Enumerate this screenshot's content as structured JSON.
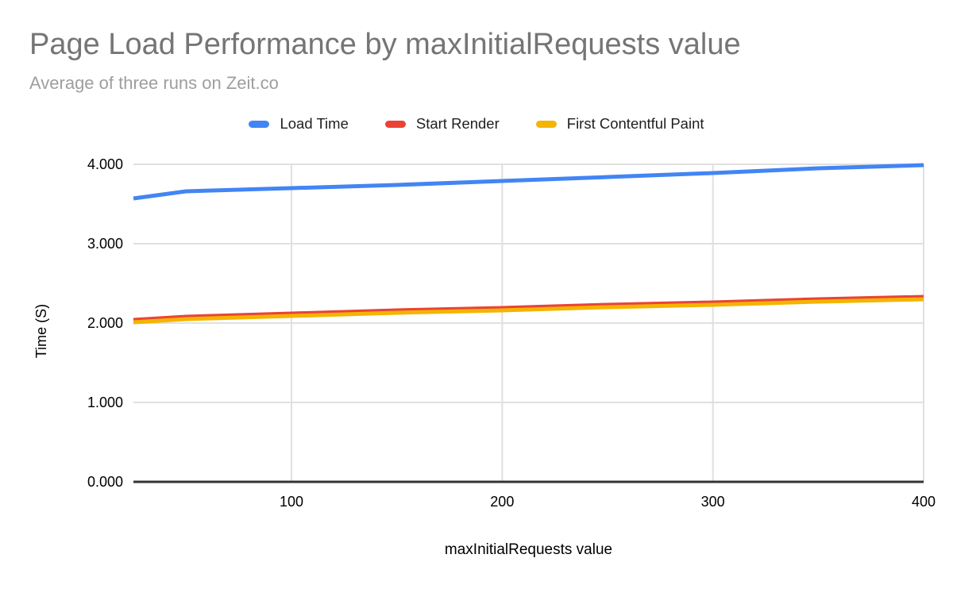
{
  "chart_data": {
    "type": "line",
    "title": "Page Load Performance by maxInitialRequests value",
    "subtitle": "Average of three runs on Zeit.co",
    "xlabel": "maxInitialRequests value",
    "ylabel": "Time (S)",
    "x": [
      25,
      50,
      100,
      150,
      200,
      250,
      300,
      350,
      400
    ],
    "series": [
      {
        "name": "Load Time",
        "color": "#4285F4",
        "values": [
          3.57,
          3.66,
          3.7,
          3.74,
          3.79,
          3.84,
          3.89,
          3.95,
          3.99
        ]
      },
      {
        "name": "Start Render",
        "color": "#EA4335",
        "values": [
          2.04,
          2.08,
          2.12,
          2.16,
          2.19,
          2.23,
          2.26,
          2.3,
          2.33
        ]
      },
      {
        "name": "First Contentful Paint",
        "color": "#F4B400",
        "values": [
          2.01,
          2.05,
          2.09,
          2.13,
          2.16,
          2.2,
          2.23,
          2.27,
          2.3
        ]
      }
    ],
    "xlim": [
      25,
      400
    ],
    "ylim": [
      0,
      4
    ],
    "xticks": [
      {
        "value": 100,
        "label": "100"
      },
      {
        "value": 200,
        "label": "200"
      },
      {
        "value": 300,
        "label": "300"
      },
      {
        "value": 400,
        "label": "400"
      }
    ],
    "yticks": [
      {
        "value": 0,
        "label": "0.000"
      },
      {
        "value": 1,
        "label": "1.000"
      },
      {
        "value": 2,
        "label": "2.000"
      },
      {
        "value": 3,
        "label": "3.000"
      },
      {
        "value": 4,
        "label": "4.000"
      }
    ],
    "grid": true,
    "legend_position": "top"
  },
  "theme": {
    "background": "#ffffff",
    "title_color": "#757575",
    "subtitle_color": "#9e9e9e",
    "tick_label_color": "#000000",
    "axis_title_color": "#000000",
    "gridline_color": "#e0e0e0",
    "axis_line_color": "#333333"
  }
}
